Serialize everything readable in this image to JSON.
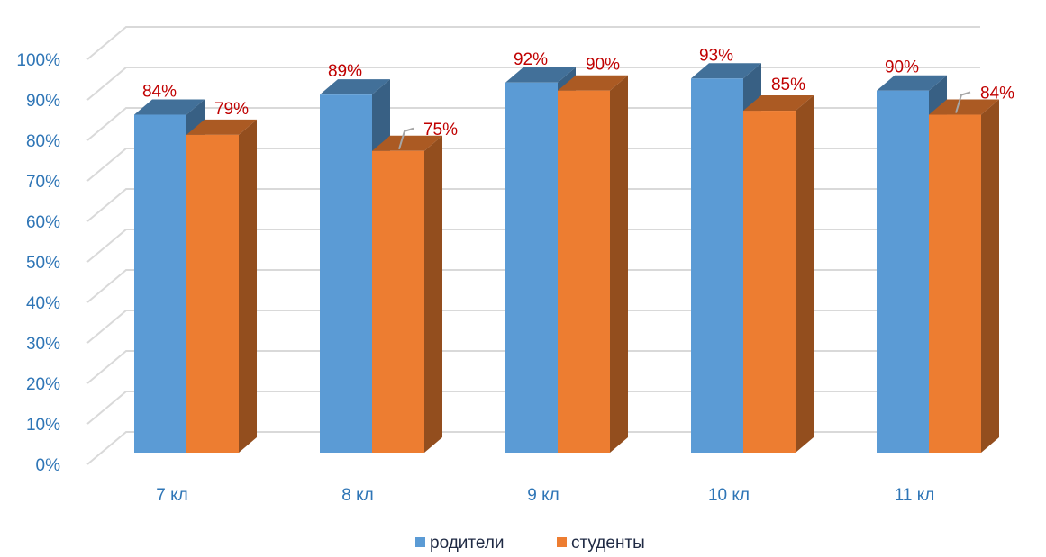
{
  "chart_data": {
    "type": "bar",
    "categories": [
      "7 кл",
      "8 кл",
      "9 кл",
      "10 кл",
      "11 кл"
    ],
    "series": [
      {
        "name": "родители",
        "values": [
          84,
          89,
          92,
          93,
          90
        ],
        "labels": [
          "84%",
          "89%",
          "92%",
          "93%",
          "90%"
        ],
        "color": "#5B9BD5"
      },
      {
        "name": "студенты",
        "values": [
          79,
          75,
          90,
          85,
          84
        ],
        "labels": [
          "79%",
          "75%",
          "90%",
          "85%",
          "84%"
        ],
        "color": "#ED7D31"
      }
    ],
    "yticks": [
      "0%",
      "10%",
      "20%",
      "30%",
      "40%",
      "50%",
      "60%",
      "70%",
      "80%",
      "90%",
      "100%"
    ],
    "ylim": [
      0,
      100
    ],
    "grid": true,
    "legend_position": "bottom",
    "style": "3d-clustered-column"
  },
  "colors": {
    "axis_text": "#2E75B6",
    "data_label": "#C00000",
    "grid": "#D9D9D9"
  }
}
